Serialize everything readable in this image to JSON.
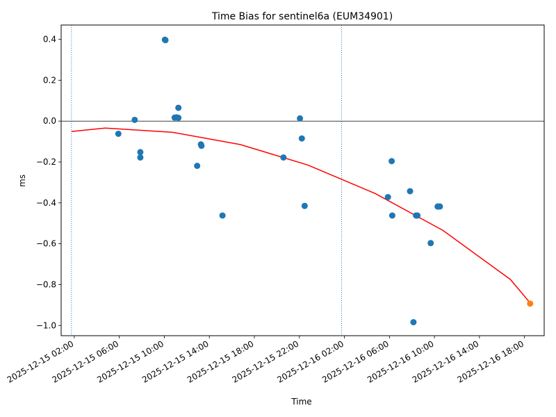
{
  "chart_data": {
    "type": "scatter",
    "title": "Time Bias for sentinel6a (EUM34901)",
    "xlabel": "Time",
    "ylabel": "ms",
    "x_is_time": true,
    "xlim": [
      "2025-12-15 00:50",
      "2025-12-16 19:45"
    ],
    "ylim": [
      -1.05,
      0.47
    ],
    "x_ticks": [
      "2025-12-15 02:00",
      "2025-12-15 06:00",
      "2025-12-15 10:00",
      "2025-12-15 14:00",
      "2025-12-15 18:00",
      "2025-12-15 22:00",
      "2025-12-16 02:00",
      "2025-12-16 06:00",
      "2025-12-16 10:00",
      "2025-12-16 14:00",
      "2025-12-16 18:00"
    ],
    "y_ticks": [
      0.4,
      0.2,
      0.0,
      -0.2,
      -0.4,
      -0.6,
      -0.8,
      -1.0
    ],
    "y_tick_labels": [
      "0.4",
      "0.2",
      "0.0",
      "−0.2",
      "−0.4",
      "−0.6",
      "−0.8",
      "−1.0"
    ],
    "grid": false,
    "reference_lines": {
      "horizontal": [
        {
          "y": 0.0,
          "color": "#000000"
        }
      ],
      "vertical": [
        {
          "x": "2025-12-15 01:45",
          "color": "#1f77b4",
          "style": "dotted"
        },
        {
          "x": "2025-12-16 01:45",
          "color": "#1f77b4",
          "style": "dotted"
        }
      ]
    },
    "series": [
      {
        "type": "scatter",
        "color": "#1f77b4",
        "points": [
          {
            "x": "2025-12-15 05:55",
            "y": -0.062
          },
          {
            "x": "2025-12-15 07:22",
            "y": 0.006
          },
          {
            "x": "2025-12-15 07:52",
            "y": -0.152
          },
          {
            "x": "2025-12-15 07:52",
            "y": -0.178
          },
          {
            "x": "2025-12-15 10:03",
            "y": 0.398
          },
          {
            "x": "2025-12-15 10:06",
            "y": 0.396
          },
          {
            "x": "2025-12-15 10:55",
            "y": 0.017
          },
          {
            "x": "2025-12-15 11:05",
            "y": 0.018
          },
          {
            "x": "2025-12-15 11:15",
            "y": 0.016
          },
          {
            "x": "2025-12-15 11:15",
            "y": 0.065
          },
          {
            "x": "2025-12-15 12:55",
            "y": -0.219
          },
          {
            "x": "2025-12-15 13:15",
            "y": -0.114
          },
          {
            "x": "2025-12-15 13:18",
            "y": -0.121
          },
          {
            "x": "2025-12-15 15:10",
            "y": -0.462
          },
          {
            "x": "2025-12-15 20:35",
            "y": -0.178
          },
          {
            "x": "2025-12-15 22:03",
            "y": 0.013
          },
          {
            "x": "2025-12-15 22:13",
            "y": -0.085
          },
          {
            "x": "2025-12-15 22:28",
            "y": -0.415
          },
          {
            "x": "2025-12-16 05:52",
            "y": -0.372
          },
          {
            "x": "2025-12-16 06:12",
            "y": -0.196
          },
          {
            "x": "2025-12-16 06:15",
            "y": -0.462
          },
          {
            "x": "2025-12-16 07:50",
            "y": -0.343
          },
          {
            "x": "2025-12-16 08:08",
            "y": -0.984
          },
          {
            "x": "2025-12-16 08:22",
            "y": -0.462
          },
          {
            "x": "2025-12-16 08:29",
            "y": -0.462
          },
          {
            "x": "2025-12-16 09:40",
            "y": -0.597
          },
          {
            "x": "2025-12-16 10:17",
            "y": -0.418
          },
          {
            "x": "2025-12-16 10:22",
            "y": -0.418
          },
          {
            "x": "2025-12-16 10:29",
            "y": -0.418
          }
        ]
      },
      {
        "type": "scatter",
        "color": "#ff7f0e",
        "points": [
          {
            "x": "2025-12-16 18:30",
            "y": -0.893
          }
        ]
      },
      {
        "type": "line",
        "color": "#ff0000",
        "points": [
          {
            "x": "2025-12-15 01:45",
            "y": -0.051
          },
          {
            "x": "2025-12-15 04:45",
            "y": -0.034
          },
          {
            "x": "2025-12-15 10:45",
            "y": -0.055
          },
          {
            "x": "2025-12-15 16:45",
            "y": -0.115
          },
          {
            "x": "2025-12-15 22:45",
            "y": -0.215
          },
          {
            "x": "2025-12-16 04:45",
            "y": -0.355
          },
          {
            "x": "2025-12-16 10:45",
            "y": -0.535
          },
          {
            "x": "2025-12-16 16:45",
            "y": -0.775
          },
          {
            "x": "2025-12-16 18:30",
            "y": -0.89
          }
        ]
      }
    ]
  }
}
